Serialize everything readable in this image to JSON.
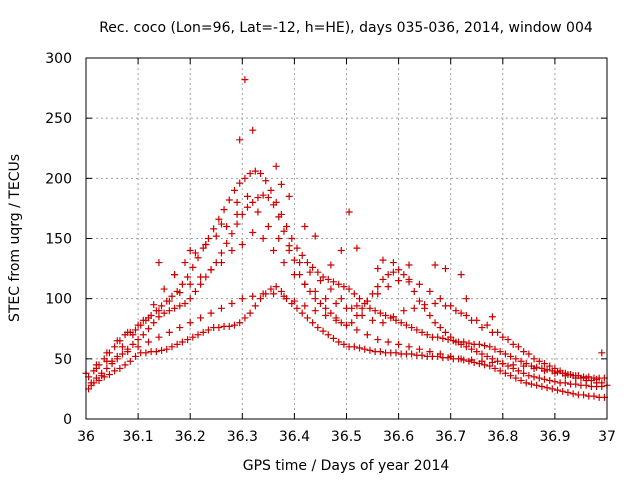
{
  "chart_data": {
    "type": "scatter",
    "title": "Rec. coco (Lon=96, Lat=-12, h=HE), days 035-036, 2014, window 004",
    "xlabel": "GPS time / Days of year 2014",
    "ylabel": "STEC from uqrg / TECUs",
    "xlim": [
      36,
      37
    ],
    "ylim": [
      0,
      300
    ],
    "xticks": [
      "36",
      "36.1",
      "36.2",
      "36.3",
      "36.4",
      "36.5",
      "36.6",
      "36.7",
      "36.8",
      "36.9",
      "37"
    ],
    "yticks": [
      "0",
      "50",
      "100",
      "150",
      "200",
      "250",
      "300"
    ],
    "grid": true,
    "marker": "+",
    "color": "#cc0000",
    "series": [
      {
        "x": [
          36.005,
          36.015,
          36.025,
          36.035,
          36.045,
          36.055,
          36.065,
          36.075,
          36.085,
          36.095,
          36.105,
          36.115,
          36.125,
          36.135,
          36.145,
          36.155,
          36.165,
          36.175,
          36.185,
          36.195,
          36.205,
          36.215,
          36.225,
          36.235,
          36.245,
          36.255,
          36.265,
          36.275,
          36.285,
          36.295,
          36.305,
          36.315,
          36.325,
          36.335,
          36.345,
          36.355,
          36.365,
          36.375,
          36.385,
          36.395,
          36.405,
          36.415,
          36.425,
          36.435,
          36.445,
          36.455,
          36.465,
          36.475,
          36.485,
          36.495,
          36.505,
          36.515,
          36.525,
          36.535,
          36.545,
          36.555,
          36.565,
          36.575,
          36.585,
          36.595,
          36.605,
          36.615,
          36.625,
          36.635,
          36.645,
          36.655,
          36.665,
          36.675,
          36.685,
          36.695,
          36.705,
          36.715,
          36.725,
          36.735,
          36.745,
          36.755,
          36.765,
          36.775,
          36.785,
          36.795,
          36.805,
          36.815,
          36.825,
          36.835,
          36.845,
          36.855,
          36.865,
          36.875,
          36.885,
          36.895,
          36.905,
          36.915,
          36.925,
          36.935,
          36.945,
          36.955,
          36.965,
          36.975,
          36.985,
          36.995
        ],
        "y": [
          25,
          30,
          32,
          35,
          37,
          40,
          42,
          45,
          48,
          52,
          55,
          55,
          56,
          56,
          57,
          58,
          60,
          62,
          64,
          66,
          68,
          70,
          72,
          74,
          76,
          76,
          77,
          77,
          78,
          80,
          84,
          88,
          94,
          100,
          104,
          108,
          110,
          106,
          100,
          96,
          92,
          88,
          84,
          80,
          76,
          73,
          70,
          67,
          64,
          62,
          60,
          60,
          59,
          58,
          57,
          56,
          56,
          55,
          55,
          55,
          54,
          54,
          54,
          53,
          53,
          52,
          52,
          52,
          51,
          51,
          50,
          50,
          49,
          48,
          47,
          46,
          45,
          44,
          42,
          40,
          38,
          36,
          34,
          32,
          30,
          29,
          28,
          27,
          26,
          25,
          24,
          23,
          22,
          21,
          20,
          20,
          19,
          19,
          18,
          18
        ]
      },
      {
        "x": [
          36.01,
          36.02,
          36.03,
          36.04,
          36.05,
          36.06,
          36.07,
          36.08,
          36.09,
          36.1,
          36.11,
          36.12,
          36.13,
          36.14,
          36.15,
          36.16,
          36.17,
          36.18,
          36.19,
          36.2,
          36.21,
          36.22,
          36.23,
          36.24,
          36.25,
          36.26,
          36.27,
          36.28,
          36.29,
          36.3,
          36.31,
          36.32,
          36.33,
          36.34,
          36.35,
          36.36,
          36.37,
          36.38,
          36.39,
          36.4,
          36.41,
          36.42,
          36.43,
          36.44,
          36.45,
          36.46,
          36.47,
          36.48,
          36.49,
          36.5,
          36.51,
          36.52,
          36.53,
          36.54,
          36.55,
          36.56,
          36.57,
          36.58,
          36.59,
          36.6,
          36.61,
          36.62,
          36.63,
          36.64,
          36.65,
          36.66,
          36.67,
          36.68,
          36.69,
          36.7,
          36.71,
          36.72,
          36.73,
          36.74,
          36.75,
          36.76,
          36.77,
          36.78,
          36.79,
          36.8,
          36.81,
          36.82,
          36.83,
          36.84,
          36.85,
          36.86,
          36.87,
          36.88,
          36.89,
          36.9,
          36.91,
          36.92,
          36.93,
          36.94,
          36.95,
          36.96,
          36.97,
          36.98,
          36.99
        ],
        "y": [
          30,
          34,
          38,
          42,
          46,
          50,
          54,
          58,
          62,
          66,
          70,
          75,
          80,
          85,
          88,
          90,
          92,
          94,
          96,
          100,
          106,
          112,
          118,
          124,
          130,
          138,
          146,
          154,
          162,
          170,
          176,
          180,
          184,
          186,
          184,
          178,
          168,
          156,
          144,
          132,
          120,
          112,
          106,
          100,
          96,
          92,
          88,
          84,
          80,
          78,
          80,
          86,
          92,
          98,
          104,
          110,
          116,
          120,
          122,
          124,
          120,
          114,
          106,
          98,
          92,
          86,
          80,
          76,
          72,
          68,
          64,
          62,
          60,
          58,
          56,
          54,
          52,
          50,
          48,
          46,
          44,
          42,
          40,
          38,
          36,
          35,
          34,
          33,
          32,
          31,
          30,
          30,
          29,
          29,
          28,
          28,
          27,
          27,
          27
        ]
      },
      {
        "x": [
          36.005,
          36.015,
          36.025,
          36.035,
          36.045,
          36.055,
          36.065,
          36.075,
          36.085,
          36.095,
          36.105,
          36.115,
          36.125,
          36.135,
          36.145,
          36.155,
          36.165,
          36.175,
          36.185,
          36.195,
          36.205,
          36.215,
          36.225,
          36.235,
          36.245,
          36.255,
          36.265,
          36.275,
          36.285,
          36.295,
          36.305,
          36.315,
          36.325,
          36.335,
          36.345,
          36.355,
          36.365,
          36.375,
          36.385,
          36.395,
          36.405,
          36.415,
          36.425,
          36.435,
          36.445,
          36.455,
          36.465,
          36.475,
          36.485,
          36.495,
          36.505,
          36.515,
          36.525,
          36.535,
          36.545,
          36.555,
          36.565,
          36.575,
          36.585,
          36.595,
          36.605,
          36.615,
          36.625,
          36.635,
          36.645,
          36.655,
          36.665,
          36.675,
          36.685,
          36.695,
          36.705,
          36.715,
          36.725,
          36.735,
          36.745,
          36.755,
          36.765,
          36.775,
          36.785,
          36.795,
          36.805,
          36.815,
          36.825,
          36.835,
          36.845,
          36.855,
          36.865,
          36.875,
          36.885,
          36.895,
          36.905,
          36.915,
          36.925,
          36.935,
          36.945,
          36.955,
          36.965,
          36.975,
          36.985,
          36.995
        ],
        "y": [
          35,
          40,
          45,
          50,
          55,
          60,
          65,
          70,
          72,
          74,
          78,
          82,
          86,
          90,
          94,
          98,
          102,
          106,
          112,
          118,
          126,
          134,
          142,
          150,
          158,
          166,
          174,
          182,
          190,
          196,
          200,
          204,
          206,
          204,
          198,
          190,
          180,
          170,
          160,
          150,
          142,
          136,
          130,
          126,
          122,
          118,
          116,
          114,
          112,
          110,
          108,
          104,
          100,
          96,
          92,
          90,
          88,
          86,
          84,
          82,
          80,
          78,
          76,
          74,
          72,
          70,
          68,
          68,
          67,
          66,
          65,
          64,
          64,
          63,
          62,
          62,
          61,
          60,
          58,
          56,
          54,
          52,
          50,
          48,
          46,
          44,
          43,
          42,
          41,
          40,
          39,
          38,
          37,
          36,
          36,
          35,
          35,
          34,
          34,
          34
        ]
      },
      {
        "x": [
          36.01,
          36.03,
          36.05,
          36.07,
          36.09,
          36.11,
          36.13,
          36.15,
          36.17,
          36.19,
          36.21,
          36.23,
          36.25,
          36.27,
          36.29,
          36.31,
          36.33,
          36.35,
          36.37,
          36.39,
          36.41,
          36.43,
          36.45,
          36.47,
          36.49,
          36.51,
          36.53,
          36.55,
          36.57,
          36.59,
          36.61,
          36.63,
          36.65,
          36.67,
          36.69,
          36.71,
          36.73,
          36.75,
          36.77,
          36.79,
          36.81,
          36.83,
          36.85,
          36.87,
          36.89,
          36.91,
          36.93,
          36.95,
          36.97,
          36.99
        ],
        "y": [
          28,
          36,
          48,
          60,
          70,
          82,
          95,
          108,
          120,
          130,
          138,
          145,
          152,
          160,
          170,
          185,
          172,
          160,
          150,
          140,
          130,
          122,
          115,
          108,
          100,
          92,
          86,
          82,
          80,
          85,
          90,
          92,
          95,
          96,
          94,
          90,
          86,
          82,
          78,
          72,
          66,
          60,
          54,
          48,
          44,
          40,
          37,
          34,
          32,
          30
        ]
      },
      {
        "x": [
          36.02,
          36.04,
          36.06,
          36.08,
          36.1,
          36.12,
          36.14,
          36.16,
          36.18,
          36.2,
          36.22,
          36.24,
          36.26,
          36.28,
          36.3,
          36.32,
          36.34,
          36.36,
          36.38,
          36.4,
          36.42,
          36.44,
          36.46,
          36.48,
          36.5,
          36.52,
          36.54,
          36.56,
          36.58,
          36.6,
          36.62,
          36.64,
          36.66,
          36.68,
          36.7,
          36.72,
          36.74,
          36.76,
          36.78,
          36.8,
          36.82,
          36.84,
          36.86,
          36.88,
          36.9,
          36.92,
          36.94,
          36.96,
          36.98
        ],
        "y": [
          45,
          55,
          65,
          72,
          78,
          84,
          90,
          98,
          105,
          112,
          118,
          124,
          130,
          140,
          145,
          155,
          150,
          140,
          130,
          120,
          112,
          106,
          100,
          96,
          92,
          94,
          98,
          104,
          110,
          115,
          116,
          112,
          106,
          100,
          94,
          88,
          82,
          76,
          72,
          68,
          62,
          56,
          50,
          46,
          42,
          38,
          36,
          34,
          33
        ]
      },
      {
        "x": [
          36.0,
          36.02,
          36.04,
          36.06,
          36.08,
          36.1,
          36.12,
          36.14,
          36.16,
          36.18,
          36.2,
          36.22,
          36.24,
          36.26,
          36.28,
          36.3,
          36.32,
          36.34,
          36.36,
          36.38,
          36.4,
          36.42,
          36.44,
          36.46,
          36.48,
          36.5,
          36.52,
          36.54,
          36.56,
          36.58,
          36.6,
          36.62,
          36.64,
          36.66,
          36.68,
          36.7,
          36.72,
          36.74,
          36.76,
          36.78,
          36.8,
          36.82,
          36.84,
          36.86,
          36.88,
          36.9,
          36.92,
          36.94,
          36.96,
          36.98,
          37.0
        ],
        "y": [
          38,
          42,
          48,
          52,
          56,
          60,
          64,
          68,
          72,
          76,
          80,
          84,
          88,
          92,
          96,
          100,
          102,
          104,
          104,
          102,
          98,
          94,
          90,
          86,
          82,
          78,
          74,
          70,
          66,
          64,
          62,
          60,
          58,
          56,
          54,
          52,
          50,
          49,
          48,
          47,
          46,
          45,
          44,
          42,
          40,
          38,
          36,
          34,
          32,
          30,
          28
        ]
      },
      {
        "x": [
          36.14,
          36.17,
          36.2,
          36.23,
          36.26,
          36.29,
          36.295,
          36.305,
          36.32,
          36.365,
          36.375,
          36.39,
          36.42,
          36.44,
          36.47,
          36.49,
          36.505,
          36.52,
          36.56,
          36.57,
          36.59,
          36.62,
          36.67,
          36.69,
          36.72,
          36.73,
          36.78,
          36.99
        ],
        "y": [
          130,
          120,
          140,
          145,
          162,
          180,
          232,
          282,
          240,
          210,
          195,
          185,
          160,
          152,
          128,
          140,
          172,
          142,
          125,
          132,
          130,
          128,
          128,
          125,
          120,
          100,
          85,
          55
        ]
      }
    ]
  }
}
